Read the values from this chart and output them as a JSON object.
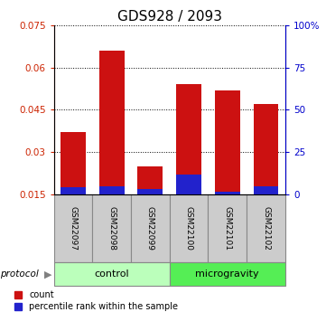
{
  "title": "GDS928 / 2093",
  "samples": [
    "GSM22097",
    "GSM22098",
    "GSM22099",
    "GSM22100",
    "GSM22101",
    "GSM22102"
  ],
  "count_values": [
    0.037,
    0.066,
    0.025,
    0.054,
    0.052,
    0.047
  ],
  "percentile_values": [
    0.0175,
    0.018,
    0.017,
    0.022,
    0.016,
    0.018
  ],
  "ylim_left": [
    0.015,
    0.075
  ],
  "ylim_right": [
    0,
    100
  ],
  "yticks_left": [
    0.015,
    0.03,
    0.045,
    0.06,
    0.075
  ],
  "ytick_labels_left": [
    "0.015",
    "0.03",
    "0.045",
    "0.06",
    "0.075"
  ],
  "yticks_right": [
    0,
    25,
    50,
    75,
    100
  ],
  "ytick_labels_right": [
    "0",
    "25",
    "50",
    "75",
    "100%"
  ],
  "groups": [
    {
      "label": "control",
      "indices": [
        0,
        1,
        2
      ],
      "color": "#bbffbb"
    },
    {
      "label": "microgravity",
      "indices": [
        3,
        4,
        5
      ],
      "color": "#55ee55"
    }
  ],
  "protocol_label": "protocol",
  "bar_color_count": "#cc1111",
  "bar_color_percentile": "#2222cc",
  "bar_width": 0.65,
  "legend_count_label": "count",
  "legend_percentile_label": "percentile rank within the sample",
  "title_fontsize": 11,
  "tick_label_color_left": "#cc2200",
  "tick_label_color_right": "#0000cc",
  "sample_box_color": "#cccccc",
  "sample_box_edge": "#888888"
}
